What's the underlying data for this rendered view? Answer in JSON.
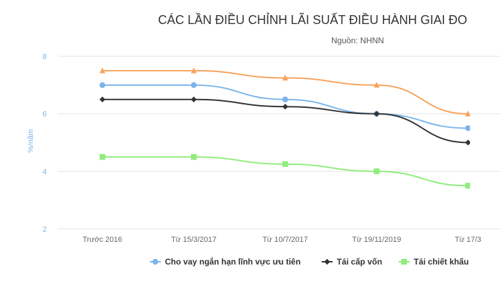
{
  "chart_data": {
    "type": "line",
    "title": "CÁC LẦN ĐIỀU CHỈNH LÃI SUẤT ĐIỀU HÀNH GIAI ĐO",
    "subtitle": "Nguồn: NHNN",
    "ylabel": "%/năm",
    "xlabel": "",
    "categories": [
      "Trước 2016",
      "Từ 15/3/2017",
      "Từ 10/7/2017",
      "Từ 19/11/2019",
      "Từ 17/3"
    ],
    "yticks": [
      2,
      4,
      6,
      8
    ],
    "ylim": [
      2,
      8
    ],
    "grid": true,
    "legend_placement": "bottom",
    "series": [
      {
        "name": "",
        "values": [
          7.5,
          7.5,
          7.25,
          7.0,
          6.0
        ],
        "color": "#f7a35c",
        "marker": "triangle"
      },
      {
        "name": "Cho vay ngắn hạn lĩnh vực ưu tiên",
        "values": [
          7.0,
          7.0,
          6.5,
          6.0,
          5.5
        ],
        "color": "#7cb5ec",
        "marker": "circle"
      },
      {
        "name": "Tái cấp vốn",
        "values": [
          6.5,
          6.5,
          6.25,
          6.0,
          5.0
        ],
        "color": "#333333",
        "marker": "diamond"
      },
      {
        "name": "Tái chiết khấu",
        "values": [
          4.5,
          4.5,
          4.25,
          4.0,
          3.5
        ],
        "color": "#90ed7d",
        "marker": "square"
      }
    ]
  }
}
